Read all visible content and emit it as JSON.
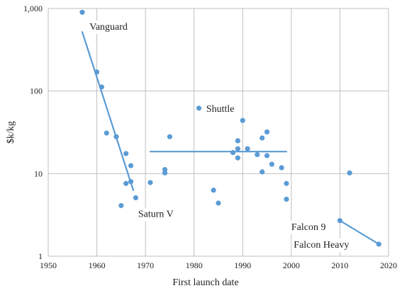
{
  "chart_data": {
    "type": "scatter",
    "title": "",
    "xlabel": "First launch date",
    "ylabel": "$k/kg",
    "xlim": [
      1950,
      2020
    ],
    "ylim": [
      1,
      1000
    ],
    "yscale": "log",
    "grid": true,
    "x_ticks": [
      "1950",
      "1960",
      "1970",
      "1980",
      "1990",
      "2000",
      "2010",
      "2020"
    ],
    "y_ticks": [
      "1",
      "10",
      "100",
      "1,000"
    ],
    "colors": {
      "marker": "#5b9bd5",
      "line": "#5b9bd5",
      "grid": "#bfbfbf"
    },
    "points": [
      {
        "x": 1957,
        "y": 900
      },
      {
        "x": 1960,
        "y": 170
      },
      {
        "x": 1961,
        "y": 112
      },
      {
        "x": 1962,
        "y": 31
      },
      {
        "x": 1964,
        "y": 28
      },
      {
        "x": 1965,
        "y": 4.1
      },
      {
        "x": 1966,
        "y": 17.5
      },
      {
        "x": 1966,
        "y": 7.6
      },
      {
        "x": 1967,
        "y": 12.5
      },
      {
        "x": 1967,
        "y": 8
      },
      {
        "x": 1968,
        "y": 5.1
      },
      {
        "x": 1971,
        "y": 7.8
      },
      {
        "x": 1974,
        "y": 11.2
      },
      {
        "x": 1974,
        "y": 10.2
      },
      {
        "x": 1975,
        "y": 28
      },
      {
        "x": 1981,
        "y": 62
      },
      {
        "x": 1984,
        "y": 6.3
      },
      {
        "x": 1985,
        "y": 4.4
      },
      {
        "x": 1988,
        "y": 18
      },
      {
        "x": 1989,
        "y": 25
      },
      {
        "x": 1989,
        "y": 20
      },
      {
        "x": 1989,
        "y": 15.5
      },
      {
        "x": 1990,
        "y": 44
      },
      {
        "x": 1991,
        "y": 20
      },
      {
        "x": 1993,
        "y": 17
      },
      {
        "x": 1994,
        "y": 27
      },
      {
        "x": 1994,
        "y": 10.5
      },
      {
        "x": 1995,
        "y": 32
      },
      {
        "x": 1995,
        "y": 16.5
      },
      {
        "x": 1996,
        "y": 13
      },
      {
        "x": 1998,
        "y": 11.8
      },
      {
        "x": 1999,
        "y": 7.6
      },
      {
        "x": 1999,
        "y": 4.9
      },
      {
        "x": 2010,
        "y": 2.7
      },
      {
        "x": 2012,
        "y": 10.2
      },
      {
        "x": 2018,
        "y": 1.4
      }
    ],
    "trend_lines": [
      {
        "x": [
          1957,
          1967.5
        ],
        "y": [
          520,
          6.3
        ]
      },
      {
        "x": [
          1971,
          1999
        ],
        "y": [
          18.5,
          18.5
        ]
      },
      {
        "x": [
          2010,
          2018
        ],
        "y": [
          2.7,
          1.4
        ]
      }
    ],
    "annotations": [
      {
        "text": "Vanguard",
        "x": 1958.5,
        "y": 610
      },
      {
        "text": "Shuttle",
        "x": 1982.5,
        "y": 62
      },
      {
        "text": "Saturn V",
        "x": 1968.5,
        "y": 3.3
      },
      {
        "text": "Falcon 9",
        "x": 2000,
        "y": 2.3
      },
      {
        "text": "Falcon Heavy",
        "x": 2000.5,
        "y": 1.4
      }
    ]
  }
}
